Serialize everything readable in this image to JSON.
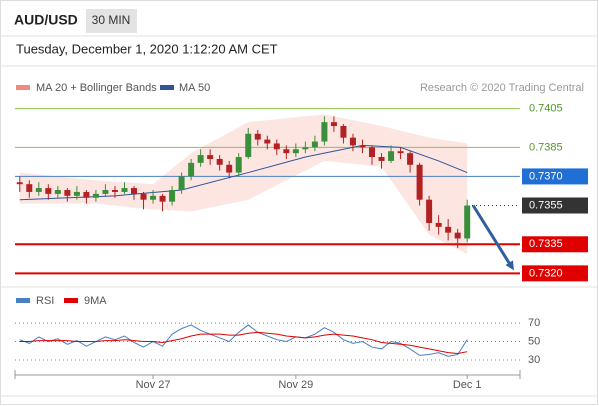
{
  "chart_data": {
    "type": "candlestick",
    "symbol": "AUD/USD",
    "interval": "30 MIN",
    "timestamp": "Tuesday, December 1, 2020 1:12:20 AM CET",
    "credit": "Research © 2020 Trading Central",
    "categories": [
      null,
      null,
      null,
      null,
      null,
      null,
      null,
      null,
      null,
      null,
      null,
      null,
      null,
      null,
      "Nov 27",
      null,
      null,
      null,
      null,
      null,
      null,
      null,
      null,
      null,
      null,
      null,
      null,
      null,
      null,
      "Nov 29",
      null,
      null,
      null,
      null,
      null,
      null,
      null,
      null,
      null,
      null,
      null,
      null,
      null,
      null,
      null,
      null,
      null,
      "Dec 1"
    ],
    "up_color": "#3a8f3a",
    "down_color": "#b22222",
    "ohlc": [
      [
        0.7367,
        0.737,
        0.7362,
        0.7366
      ],
      [
        0.7366,
        0.7368,
        0.7359,
        0.7362
      ],
      [
        0.7362,
        0.7367,
        0.736,
        0.7364
      ],
      [
        0.7364,
        0.7366,
        0.7358,
        0.7361
      ],
      [
        0.7361,
        0.7365,
        0.7359,
        0.7363
      ],
      [
        0.7363,
        0.7364,
        0.7357,
        0.736
      ],
      [
        0.736,
        0.7365,
        0.7358,
        0.7362
      ],
      [
        0.7362,
        0.7363,
        0.7356,
        0.7359
      ],
      [
        0.7359,
        0.7363,
        0.7357,
        0.7361
      ],
      [
        0.7361,
        0.7366,
        0.736,
        0.7363
      ],
      [
        0.7363,
        0.7365,
        0.7359,
        0.7362
      ],
      [
        0.7362,
        0.7367,
        0.7361,
        0.7364
      ],
      [
        0.7364,
        0.7365,
        0.7358,
        0.7361
      ],
      [
        0.7361,
        0.7362,
        0.7353,
        0.7358
      ],
      [
        0.7358,
        0.7363,
        0.7356,
        0.736
      ],
      [
        0.736,
        0.7361,
        0.7352,
        0.7357
      ],
      [
        0.7357,
        0.7365,
        0.7355,
        0.7363
      ],
      [
        0.7363,
        0.7372,
        0.7361,
        0.737
      ],
      [
        0.737,
        0.7379,
        0.7368,
        0.7377
      ],
      [
        0.7377,
        0.7384,
        0.7375,
        0.7381
      ],
      [
        0.7381,
        0.7384,
        0.7376,
        0.7379
      ],
      [
        0.7379,
        0.7381,
        0.7373,
        0.7376
      ],
      [
        0.7376,
        0.7378,
        0.7369,
        0.7372
      ],
      [
        0.7372,
        0.7382,
        0.737,
        0.738
      ],
      [
        0.738,
        0.7395,
        0.7379,
        0.7392
      ],
      [
        0.7392,
        0.7394,
        0.7386,
        0.7389
      ],
      [
        0.7389,
        0.7391,
        0.7384,
        0.7387
      ],
      [
        0.7387,
        0.7389,
        0.7381,
        0.7384
      ],
      [
        0.7384,
        0.7386,
        0.7379,
        0.7382
      ],
      [
        0.7382,
        0.7387,
        0.738,
        0.7384
      ],
      [
        0.7384,
        0.7388,
        0.7382,
        0.7385
      ],
      [
        0.7385,
        0.7391,
        0.7383,
        0.7388
      ],
      [
        0.7388,
        0.7401,
        0.7386,
        0.7398
      ],
      [
        0.7398,
        0.7401,
        0.7393,
        0.7396
      ],
      [
        0.7396,
        0.7397,
        0.7387,
        0.739
      ],
      [
        0.739,
        0.7392,
        0.7383,
        0.7386
      ],
      [
        0.7386,
        0.7389,
        0.7382,
        0.7385
      ],
      [
        0.7385,
        0.7386,
        0.7376,
        0.738
      ],
      [
        0.738,
        0.7382,
        0.7374,
        0.7378
      ],
      [
        0.7378,
        0.7386,
        0.7377,
        0.7383
      ],
      [
        0.7383,
        0.7385,
        0.7379,
        0.7382
      ],
      [
        0.7382,
        0.7383,
        0.7372,
        0.7376
      ],
      [
        0.7376,
        0.7377,
        0.7355,
        0.7358
      ],
      [
        0.7358,
        0.736,
        0.7342,
        0.7346
      ],
      [
        0.7346,
        0.735,
        0.734,
        0.7344
      ],
      [
        0.7344,
        0.7348,
        0.7337,
        0.7341
      ],
      [
        0.7341,
        0.7343,
        0.7333,
        0.7338
      ],
      [
        0.7338,
        0.7358,
        0.7336,
        0.7355
      ]
    ],
    "ylim": [
      0.7314,
      0.7412
    ],
    "bollinger": {
      "name": "MA 20 + Bollinger Bands",
      "color": "#f08a80",
      "fill": "#fde0dd",
      "x": [
        0,
        8,
        14,
        18,
        24,
        32,
        38,
        43,
        47
      ],
      "upper": [
        0.7372,
        0.7368,
        0.7366,
        0.7382,
        0.7398,
        0.7402,
        0.7396,
        0.739,
        0.7387
      ],
      "lower": [
        0.7356,
        0.7356,
        0.7353,
        0.7352,
        0.7358,
        0.7378,
        0.7375,
        0.734,
        0.733
      ]
    },
    "ma50": {
      "name": "MA 50",
      "color": "#2f5597",
      "x": [
        0,
        10,
        17,
        24,
        30,
        36,
        40,
        44,
        47
      ],
      "values": [
        0.7358,
        0.736,
        0.7363,
        0.7372,
        0.738,
        0.7386,
        0.7385,
        0.7378,
        0.7372
      ]
    },
    "levels": [
      {
        "value": 0.7405,
        "label": "0.7405",
        "color": "#8bc34a",
        "text_color": "#4f9a2a",
        "box": false
      },
      {
        "value": 0.7385,
        "label": "0.7385",
        "color": "#8bc34a",
        "text_color": "#4f9a2a",
        "box": false
      },
      {
        "value": 0.737,
        "label": "0.7370",
        "color": "#4a7fc1",
        "text_color": "#ffffff",
        "box": "#1f6fd6"
      },
      {
        "value": 0.7355,
        "label": "0.7355",
        "color": "#333333",
        "text_color": "#ffffff",
        "box": "#333333",
        "dotted": true
      },
      {
        "value": 0.7335,
        "label": "0.7335",
        "color": "#e00000",
        "text_color": "#ffffff",
        "box": "#e00000"
      },
      {
        "value": 0.732,
        "label": "0.7320",
        "color": "#e00000",
        "text_color": "#ffffff",
        "box": "#e00000"
      }
    ],
    "forecast_color": "#2f5fa0",
    "rsi": {
      "ylim": [
        17,
        95
      ],
      "yticks": [
        70,
        50,
        30
      ],
      "series": [
        {
          "name": "RSI",
          "color": "#4a7fc1",
          "values": [
            52,
            48,
            55,
            50,
            53,
            47,
            51,
            45,
            50,
            55,
            52,
            56,
            49,
            44,
            50,
            45,
            58,
            64,
            68,
            62,
            58,
            54,
            50,
            60,
            68,
            60,
            56,
            52,
            50,
            55,
            54,
            58,
            65,
            60,
            52,
            48,
            50,
            44,
            42,
            50,
            48,
            42,
            35,
            36,
            38,
            34,
            36,
            52
          ]
        },
        {
          "name": "9MA",
          "color": "#e00000",
          "values": [
            50,
            50,
            51,
            51,
            51,
            51,
            50,
            50,
            50,
            51,
            51,
            52,
            51,
            50,
            50,
            49,
            51,
            53,
            56,
            58,
            58,
            58,
            57,
            57,
            59,
            60,
            59,
            58,
            56,
            55,
            54,
            55,
            57,
            58,
            57,
            56,
            54,
            52,
            49,
            48,
            47,
            46,
            44,
            42,
            40,
            38,
            37,
            39
          ]
        }
      ]
    }
  }
}
